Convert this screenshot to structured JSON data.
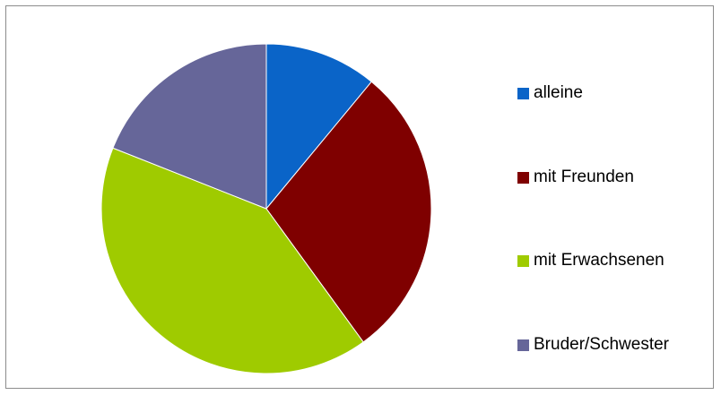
{
  "chart_data": {
    "type": "pie",
    "title": "",
    "start_angle_deg": 0,
    "direction": "clockwise",
    "legend_position": "right",
    "slices": [
      {
        "label": "alleine",
        "value": 11,
        "color": "#0a64c8"
      },
      {
        "label": "mit Freunden",
        "value": 29,
        "color": "#7f0000"
      },
      {
        "label": "mit Erwachsenen",
        "value": 41,
        "color": "#9fcb00"
      },
      {
        "label": "Bruder/Schwester",
        "value": 19,
        "color": "#666699"
      }
    ]
  }
}
